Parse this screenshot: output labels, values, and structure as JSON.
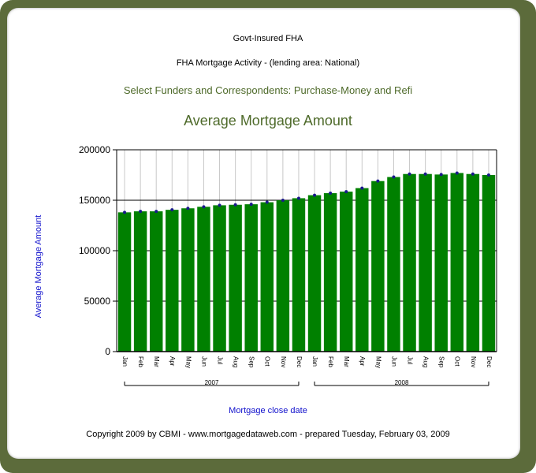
{
  "header": {
    "title": "Govt-Insured FHA",
    "subtitle": "FHA Mortgage Activity - (lending area: National)",
    "selection": "Select Funders and Correspondents:  Purchase-Money and Refi"
  },
  "footer": {
    "copyright": "Copyright 2009 by CBMI - www.mortgagedataweb.com - prepared Tuesday, February 03, 2009"
  },
  "colors": {
    "bar": "#008000",
    "marker": "#1a1a8c",
    "frame": "#5c6b3b",
    "heading": "#4e6a2a",
    "axis_label": "#1010cc"
  },
  "chart_data": {
    "type": "bar",
    "title": "Average  Mortgage Amount",
    "xlabel": "Mortgage close date",
    "ylabel": "Average Mortgage Amount",
    "ylim": [
      0,
      200000
    ],
    "yticks": [
      0,
      50000,
      100000,
      150000,
      200000
    ],
    "ytick_labels": [
      "0",
      "50000",
      "100000",
      "150000",
      "200000"
    ],
    "grid": "horizontal",
    "categories": [
      "Jan",
      "Feb",
      "Mar",
      "Apr",
      "May",
      "Jun",
      "Jul",
      "Aug",
      "Sep",
      "Oct",
      "Nov",
      "Dec",
      "Jan",
      "Feb",
      "Mar",
      "Apr",
      "May",
      "Jun",
      "Jul",
      "Aug",
      "Sep",
      "Oct",
      "Nov",
      "Dec"
    ],
    "groups": [
      {
        "label": "2007",
        "start": 0,
        "end": 11
      },
      {
        "label": "2008",
        "start": 12,
        "end": 23
      }
    ],
    "values": [
      138000,
      139000,
      139000,
      140500,
      142000,
      143500,
      145000,
      145500,
      146000,
      148000,
      150000,
      152000,
      155000,
      157000,
      158500,
      162000,
      169000,
      173000,
      176000,
      176000,
      175500,
      177000,
      176000,
      175000
    ]
  }
}
